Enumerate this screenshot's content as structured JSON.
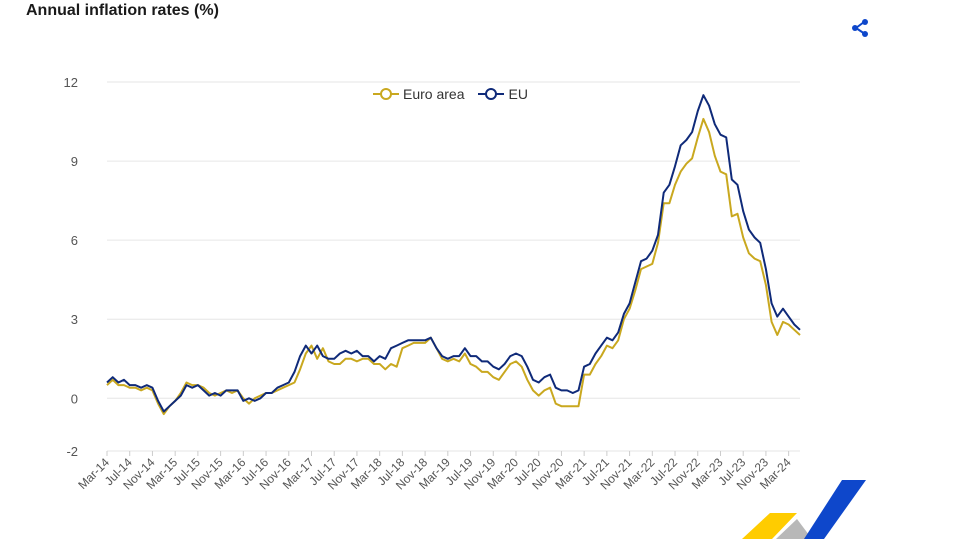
{
  "title": "Annual inflation rates (%)",
  "share": {
    "icon": "share-icon"
  },
  "logo": {
    "icon": "eurostat-logo",
    "colors": [
      "#ffcc00",
      "#0e47cb",
      "#b8b8b8"
    ]
  },
  "colors": {
    "euro_area": "#c9a81f",
    "eu": "#0f2a79",
    "grid": "#e6e6e6",
    "axis_text": "#555555"
  },
  "chart_data": {
    "type": "line",
    "title": "Annual inflation rates (%)",
    "xlabel": "",
    "ylabel": "",
    "ylim": [
      -2,
      12
    ],
    "yticks": [
      -2,
      0,
      3,
      6,
      9,
      12
    ],
    "legend_position": "top-center",
    "x_tick_labels": [
      "Mar-14",
      "Jul-14",
      "Nov-14",
      "Mar-15",
      "Jul-15",
      "Nov-15",
      "Mar-16",
      "Jul-16",
      "Nov-16",
      "Mar-17",
      "Jul-17",
      "Nov-17",
      "Mar-18",
      "Jul-18",
      "Nov-18",
      "Mar-19",
      "Jul-19",
      "Nov-19",
      "Mar-20",
      "Jul-20",
      "Nov-20",
      "Mar-21",
      "Jul-21",
      "Nov-21",
      "Mar-22",
      "Jul-22",
      "Nov-22",
      "Mar-23",
      "Jul-23",
      "Nov-23",
      "Mar-24"
    ],
    "series": [
      {
        "name": "Euro area",
        "color": "#c9a81f",
        "values": [
          0.5,
          0.7,
          0.5,
          0.5,
          0.4,
          0.4,
          0.3,
          0.4,
          0.3,
          -0.2,
          -0.6,
          -0.3,
          -0.1,
          0.2,
          0.6,
          0.5,
          0.5,
          0.4,
          0.2,
          0.1,
          0.2,
          0.3,
          0.2,
          0.3,
          0.0,
          -0.2,
          0.0,
          0.1,
          0.2,
          0.2,
          0.3,
          0.4,
          0.5,
          0.6,
          1.1,
          1.7,
          2.0,
          1.5,
          1.9,
          1.4,
          1.3,
          1.3,
          1.5,
          1.5,
          1.4,
          1.5,
          1.5,
          1.3,
          1.3,
          1.1,
          1.3,
          1.2,
          1.9,
          2.0,
          2.1,
          2.1,
          2.1,
          2.3,
          1.9,
          1.5,
          1.4,
          1.5,
          1.4,
          1.7,
          1.3,
          1.2,
          1.0,
          1.0,
          0.8,
          0.7,
          1.0,
          1.3,
          1.4,
          1.2,
          0.7,
          0.3,
          0.1,
          0.3,
          0.4,
          -0.2,
          -0.3,
          -0.3,
          -0.3,
          -0.3,
          0.9,
          0.9,
          1.3,
          1.6,
          2.0,
          1.9,
          2.2,
          3.0,
          3.4,
          4.1,
          4.9,
          5.0,
          5.1,
          5.9,
          7.4,
          7.4,
          8.1,
          8.6,
          8.9,
          9.1,
          9.9,
          10.6,
          10.1,
          9.2,
          8.6,
          8.5,
          6.9,
          7.0,
          6.1,
          5.5,
          5.3,
          5.2,
          4.3,
          2.9,
          2.4,
          2.9,
          2.8,
          2.6,
          2.4
        ]
      },
      {
        "name": "EU",
        "color": "#0f2a79",
        "values": [
          0.6,
          0.8,
          0.6,
          0.7,
          0.5,
          0.5,
          0.4,
          0.5,
          0.4,
          -0.1,
          -0.5,
          -0.3,
          -0.1,
          0.1,
          0.5,
          0.4,
          0.5,
          0.3,
          0.1,
          0.2,
          0.1,
          0.3,
          0.3,
          0.3,
          -0.1,
          0.0,
          -0.1,
          0.0,
          0.2,
          0.2,
          0.4,
          0.5,
          0.6,
          1.0,
          1.6,
          2.0,
          1.7,
          2.0,
          1.6,
          1.5,
          1.5,
          1.7,
          1.8,
          1.7,
          1.8,
          1.6,
          1.6,
          1.4,
          1.6,
          1.5,
          1.9,
          2.0,
          2.1,
          2.2,
          2.2,
          2.2,
          2.2,
          2.3,
          1.9,
          1.6,
          1.5,
          1.6,
          1.6,
          1.9,
          1.6,
          1.6,
          1.4,
          1.4,
          1.2,
          1.1,
          1.3,
          1.6,
          1.7,
          1.6,
          1.2,
          0.7,
          0.6,
          0.8,
          0.9,
          0.4,
          0.3,
          0.3,
          0.2,
          0.3,
          1.2,
          1.3,
          1.7,
          2.0,
          2.3,
          2.2,
          2.5,
          3.2,
          3.6,
          4.4,
          5.2,
          5.3,
          5.6,
          6.2,
          7.8,
          8.1,
          8.8,
          9.6,
          9.8,
          10.1,
          10.9,
          11.5,
          11.1,
          10.4,
          10.0,
          9.9,
          8.3,
          8.1,
          7.1,
          6.4,
          6.1,
          5.9,
          4.9,
          3.6,
          3.1,
          3.4,
          3.1,
          2.8,
          2.6
        ]
      }
    ]
  }
}
